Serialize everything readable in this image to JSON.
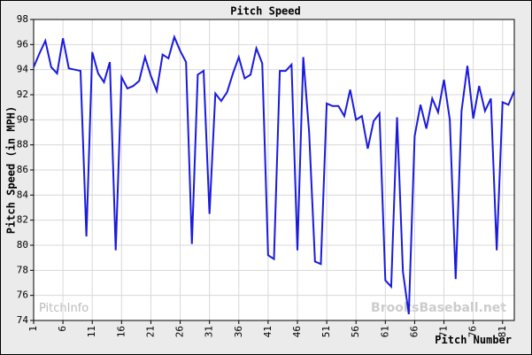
{
  "chart_data": {
    "type": "line",
    "title": "Pitch Speed",
    "xlabel": "Pitch Number",
    "ylabel": "Pitch Speed (in MPH)",
    "watermarks": [
      "PitchInfo",
      "BrooksBaseball.net"
    ],
    "x": [
      1,
      2,
      3,
      4,
      5,
      6,
      7,
      8,
      9,
      10,
      11,
      12,
      13,
      14,
      15,
      16,
      17,
      18,
      19,
      20,
      21,
      22,
      23,
      24,
      25,
      26,
      27,
      28,
      29,
      30,
      31,
      32,
      33,
      34,
      35,
      36,
      37,
      38,
      39,
      40,
      41,
      42,
      43,
      44,
      45,
      46,
      47,
      48,
      49,
      50,
      51,
      52,
      53,
      54,
      55,
      56,
      57,
      58,
      59,
      60,
      61,
      62,
      63,
      64,
      65,
      66,
      67,
      68,
      69,
      70,
      71,
      72,
      73,
      74,
      75,
      76,
      77,
      78,
      79,
      80,
      81,
      82,
      83
    ],
    "series": [
      {
        "name": "Pitch Speed",
        "color": "#1a1adf",
        "values": [
          94.2,
          95.3,
          96.3,
          94.2,
          93.7,
          96.5,
          94.1,
          94.0,
          93.9,
          80.7,
          95.4,
          93.7,
          93.0,
          94.6,
          79.6,
          93.4,
          92.5,
          92.7,
          93.1,
          95.0,
          93.5,
          92.3,
          95.2,
          94.9,
          96.6,
          95.5,
          94.6,
          80.1,
          93.6,
          93.9,
          82.5,
          92.1,
          91.5,
          92.2,
          93.7,
          95.0,
          93.3,
          93.6,
          95.7,
          94.5,
          79.2,
          78.9,
          93.9,
          93.9,
          94.4,
          79.6,
          95.0,
          89.0,
          78.7,
          78.5,
          91.3,
          91.1,
          91.1,
          90.3,
          92.4,
          90.0,
          90.3,
          87.7,
          89.9,
          90.5,
          77.2,
          76.7,
          90.2,
          77.9,
          74.5,
          88.7,
          91.2,
          89.3,
          91.7,
          90.6,
          93.2,
          90.0,
          77.3,
          90.7,
          94.3,
          90.1,
          92.7,
          90.7,
          91.7,
          79.6,
          91.4,
          91.2,
          92.3
        ]
      }
    ],
    "xlim": [
      1,
      83
    ],
    "xticks": [
      1,
      6,
      11,
      16,
      21,
      26,
      31,
      36,
      41,
      46,
      51,
      56,
      61,
      66,
      71,
      76,
      81
    ],
    "ylim": [
      74,
      98
    ],
    "yticks": [
      74,
      76,
      78,
      80,
      82,
      84,
      86,
      88,
      90,
      92,
      94,
      96,
      98
    ],
    "grid": true
  }
}
